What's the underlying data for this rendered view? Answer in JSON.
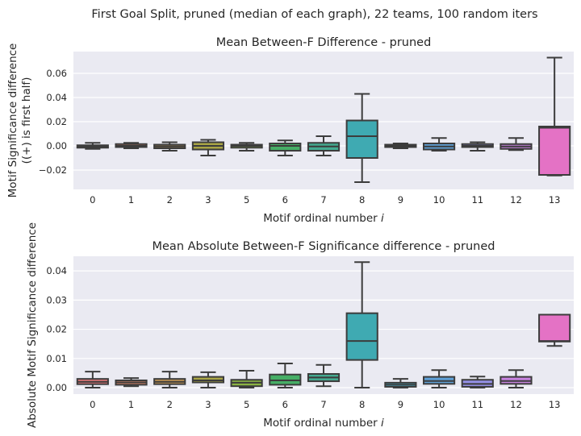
{
  "suptitle": "First Goal Split, pruned (median of each graph), 22 teams, 100 random iters",
  "palette": [
    "#e8797b",
    "#e0876a",
    "#c99a55",
    "#a9a545",
    "#8ab243",
    "#46ae66",
    "#44aa90",
    "#3faab2",
    "#43a5c2",
    "#5fa0d7",
    "#9590e6",
    "#c782df",
    "#e472c5"
  ],
  "chart_data": [
    {
      "type": "box",
      "title": "Mean Between-F Difference - pruned",
      "xlabel": "Motif ordinal number i",
      "ylabel_lines": [
        "Motif Significance difference",
        "((+) is first half)"
      ],
      "categories": [
        "0",
        "1",
        "2",
        "3",
        "5",
        "6",
        "7",
        "8",
        "9",
        "10",
        "11",
        "12",
        "13"
      ],
      "ylim": [
        -0.036,
        0.078
      ],
      "yticks": [
        -0.02,
        0.0,
        0.02,
        0.04,
        0.06
      ],
      "ytick_labels": [
        "−0.02",
        "0.00",
        "0.02",
        "0.04",
        "0.06"
      ],
      "grid": true,
      "boxes": [
        {
          "whislo": -0.0025,
          "q1": -0.0015,
          "med": -0.0005,
          "q3": 0.0005,
          "whishi": 0.0025
        },
        {
          "whislo": -0.002,
          "q1": -0.001,
          "med": 0.0,
          "q3": 0.0015,
          "whishi": 0.0025
        },
        {
          "whislo": -0.004,
          "q1": -0.002,
          "med": -0.0005,
          "q3": 0.001,
          "whishi": 0.003
        },
        {
          "whislo": -0.008,
          "q1": -0.003,
          "med": 0.0,
          "q3": 0.003,
          "whishi": 0.005
        },
        {
          "whislo": -0.004,
          "q1": -0.0015,
          "med": 0.0,
          "q3": 0.001,
          "whishi": 0.0025
        },
        {
          "whislo": -0.008,
          "q1": -0.004,
          "med": 0.0,
          "q3": 0.002,
          "whishi": 0.0045
        },
        {
          "whislo": -0.008,
          "q1": -0.004,
          "med": -0.0005,
          "q3": 0.0025,
          "whishi": 0.008
        },
        {
          "whislo": -0.03,
          "q1": -0.01,
          "med": 0.008,
          "q3": 0.021,
          "whishi": 0.043
        },
        {
          "whislo": -0.002,
          "q1": -0.001,
          "med": 0.0,
          "q3": 0.001,
          "whishi": 0.002
        },
        {
          "whislo": -0.004,
          "q1": -0.003,
          "med": -0.0005,
          "q3": 0.002,
          "whishi": 0.0065
        },
        {
          "whislo": -0.004,
          "q1": -0.001,
          "med": 0.0,
          "q3": 0.0015,
          "whishi": 0.003
        },
        {
          "whislo": -0.0035,
          "q1": -0.0025,
          "med": -0.0005,
          "q3": 0.0015,
          "whishi": 0.0065
        },
        {
          "whislo": -0.0245,
          "q1": -0.024,
          "med": 0.015,
          "q3": 0.016,
          "whishi": 0.073
        }
      ]
    },
    {
      "type": "box",
      "title": "Mean Absolute Between-F Significance difference - pruned",
      "xlabel": "Motif ordinal number i",
      "ylabel_lines": [
        "Absolute Motif Significance difference"
      ],
      "categories": [
        "0",
        "1",
        "2",
        "3",
        "5",
        "6",
        "7",
        "8",
        "9",
        "10",
        "11",
        "12",
        "13"
      ],
      "ylim": [
        -0.0022,
        0.045
      ],
      "yticks": [
        0.0,
        0.01,
        0.02,
        0.03,
        0.04
      ],
      "ytick_labels": [
        "0.00",
        "0.01",
        "0.02",
        "0.03",
        "0.04"
      ],
      "grid": true,
      "boxes": [
        {
          "whislo": 0.0,
          "q1": 0.0012,
          "med": 0.002,
          "q3": 0.003,
          "whishi": 0.0055
        },
        {
          "whislo": 0.0005,
          "q1": 0.001,
          "med": 0.0018,
          "q3": 0.0025,
          "whishi": 0.0033
        },
        {
          "whislo": 0.0,
          "q1": 0.0012,
          "med": 0.002,
          "q3": 0.003,
          "whishi": 0.0055
        },
        {
          "whislo": 0.0,
          "q1": 0.0018,
          "med": 0.0025,
          "q3": 0.0037,
          "whishi": 0.0053
        },
        {
          "whislo": 0.0,
          "q1": 0.0005,
          "med": 0.0017,
          "q3": 0.0027,
          "whishi": 0.0058
        },
        {
          "whislo": 0.0,
          "q1": 0.001,
          "med": 0.0025,
          "q3": 0.0045,
          "whishi": 0.0083
        },
        {
          "whislo": 0.0005,
          "q1": 0.0022,
          "med": 0.0035,
          "q3": 0.0047,
          "whishi": 0.0078
        },
        {
          "whislo": 0.0,
          "q1": 0.0095,
          "med": 0.016,
          "q3": 0.0255,
          "whishi": 0.043
        },
        {
          "whislo": 0.0,
          "q1": 0.0003,
          "med": 0.001,
          "q3": 0.0017,
          "whishi": 0.003
        },
        {
          "whislo": 0.0,
          "q1": 0.0013,
          "med": 0.0023,
          "q3": 0.0037,
          "whishi": 0.006
        },
        {
          "whislo": 0.0,
          "q1": 0.0003,
          "med": 0.0013,
          "q3": 0.0027,
          "whishi": 0.0038
        },
        {
          "whislo": 0.0,
          "q1": 0.0013,
          "med": 0.0023,
          "q3": 0.0037,
          "whishi": 0.006
        },
        {
          "whislo": 0.0143,
          "q1": 0.0158,
          "med": 0.016,
          "q3": 0.025,
          "whishi": 0.025
        }
      ]
    }
  ]
}
